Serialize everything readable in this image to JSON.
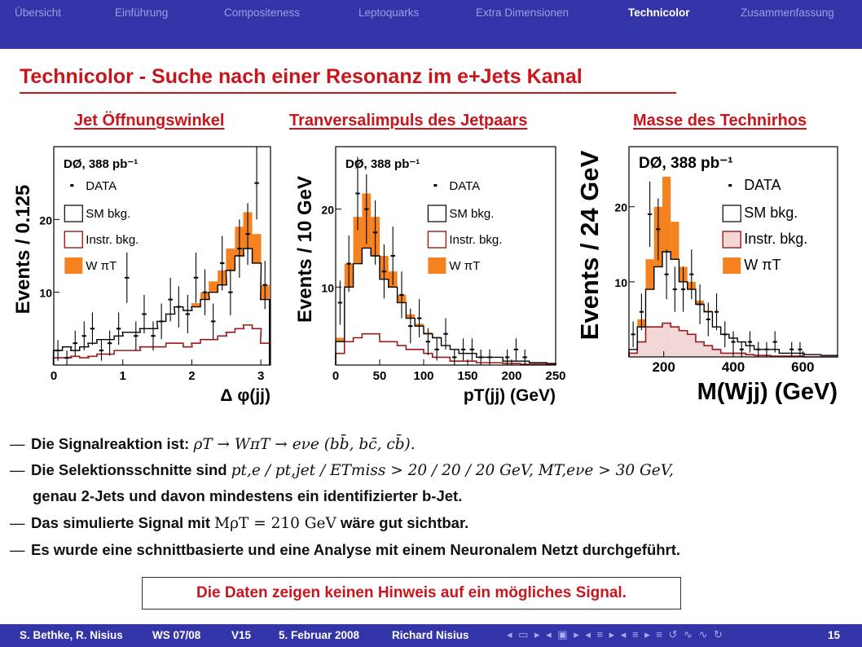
{
  "nav": {
    "items": [
      "Übersicht",
      "Einführung",
      "Compositeness",
      "Leptoquarks",
      "Extra Dimensionen",
      "Technicolor",
      "Zusammenfassung"
    ],
    "active_index": 5
  },
  "slide": {
    "title": "Technicolor - Suche nach einer Resonanz im e+Jets Kanal",
    "plot_titles": [
      "Jet Öffnungswinkel",
      "Tranversalimpuls des Jetpaars",
      "Masse des Technirhos"
    ]
  },
  "chart_data": [
    {
      "type": "bar",
      "experiment_label": "DØ, 388 pb⁻¹",
      "xlabel": "Δ φ(jj)",
      "ylabel": "Events / 0.125",
      "xlim": [
        0,
        3.14
      ],
      "ylim": [
        0,
        30
      ],
      "x_ticks": [
        "0",
        "1",
        "2",
        "3"
      ],
      "y_ticks": [
        "10",
        "20"
      ],
      "legend": [
        "DATA",
        "SM bkg.",
        "Instr. bkg.",
        "W πT"
      ],
      "bin_centers": [
        0.06,
        0.19,
        0.31,
        0.44,
        0.56,
        0.69,
        0.81,
        0.94,
        1.06,
        1.19,
        1.31,
        1.44,
        1.56,
        1.69,
        1.81,
        1.94,
        2.06,
        2.19,
        2.31,
        2.44,
        2.56,
        2.69,
        2.81,
        2.94,
        3.06
      ],
      "series": [
        {
          "name": "SM bkg.",
          "values": [
            2,
            2.5,
            2,
            2.5,
            3,
            3.5,
            3.5,
            4,
            4.5,
            4.5,
            5,
            5,
            6,
            7,
            8,
            7.5,
            8,
            9,
            10,
            11,
            13,
            15,
            16,
            14,
            9
          ]
        },
        {
          "name": "Instr. bkg.",
          "values": [
            1,
            1,
            1.2,
            1,
            1.2,
            1.5,
            1.5,
            2,
            2,
            2,
            2.5,
            2.5,
            2.5,
            3,
            3,
            2.5,
            3,
            3.5,
            3.5,
            4,
            4.5,
            5,
            5.5,
            5,
            3
          ]
        },
        {
          "name": "W πT",
          "values": [
            0,
            0,
            0,
            0,
            0,
            0,
            0,
            0,
            0,
            0,
            0,
            0,
            0,
            0,
            0,
            0,
            0.5,
            1,
            1.5,
            2,
            3,
            4,
            5,
            4,
            2
          ]
        },
        {
          "name": "DATA",
          "values": [
            2,
            1,
            3,
            4,
            5,
            2,
            3,
            5,
            12,
            4,
            7,
            4,
            6,
            9,
            8,
            7,
            12,
            10,
            6,
            14,
            10,
            16,
            18,
            25,
            11
          ]
        }
      ]
    },
    {
      "type": "bar",
      "experiment_label": "DØ, 388 pb⁻¹",
      "xlabel": "pT(jj) (GeV)",
      "ylabel": "Events / 10 GeV",
      "xlim": [
        0,
        250
      ],
      "ylim": [
        0,
        28
      ],
      "x_ticks": [
        "0",
        "50",
        "100",
        "150",
        "200",
        "250"
      ],
      "y_ticks": [
        "10",
        "20"
      ],
      "legend": [
        "DATA",
        "SM bkg.",
        "Instr. bkg.",
        "W πT"
      ],
      "bin_centers": [
        5,
        15,
        25,
        35,
        45,
        55,
        65,
        75,
        85,
        95,
        105,
        115,
        125,
        135,
        145,
        155,
        165,
        175,
        185,
        195,
        205,
        215,
        225,
        235,
        245
      ],
      "series": [
        {
          "name": "SM bkg.",
          "values": [
            3,
            10,
            13,
            15,
            14,
            11,
            10,
            8,
            6,
            5,
            4,
            3.5,
            2.5,
            2,
            1.5,
            1.5,
            1,
            1,
            1,
            0.5,
            0.5,
            0.5,
            0.3,
            0.3,
            0.2
          ]
        },
        {
          "name": "Instr. bkg.",
          "values": [
            1.5,
            3,
            3.5,
            4,
            4,
            3,
            3,
            2.5,
            2,
            2,
            1.5,
            1,
            1,
            0.5,
            0.5,
            0.5,
            0.3,
            0.3,
            0.3,
            0.2,
            0.2,
            0.1,
            0.1,
            0.1,
            0.1
          ]
        },
        {
          "name": "W πT",
          "values": [
            0.5,
            3,
            6,
            7,
            5,
            3,
            2,
            1,
            0.5,
            0.3,
            0.2,
            0.1,
            0,
            0,
            0,
            0,
            0,
            0,
            0,
            0,
            0,
            0,
            0,
            0,
            0
          ]
        },
        {
          "name": "DATA",
          "values": [
            8,
            13,
            22,
            20,
            17,
            12,
            14,
            9,
            5,
            6,
            3,
            2,
            4,
            1,
            2,
            2,
            1,
            1,
            0,
            1,
            2,
            1,
            0,
            0,
            0
          ]
        }
      ]
    },
    {
      "type": "bar",
      "experiment_label": "DØ, 388 pb⁻¹",
      "xlabel": "M(Wjj) (GeV)",
      "ylabel": "Events / 24 GeV",
      "xlim": [
        100,
        700
      ],
      "ylim": [
        0,
        28
      ],
      "x_ticks": [
        "200",
        "400",
        "600"
      ],
      "y_ticks": [
        "10",
        "20"
      ],
      "legend": [
        "DATA",
        "SM bkg.",
        "Instr. bkg.",
        "W πT"
      ],
      "bin_centers": [
        112,
        136,
        160,
        184,
        208,
        232,
        256,
        280,
        304,
        328,
        352,
        376,
        400,
        424,
        448,
        472,
        496,
        520,
        544,
        568,
        592,
        616,
        640,
        664,
        688
      ],
      "series": [
        {
          "name": "SM bkg.",
          "values": [
            1,
            4,
            9,
            12,
            14,
            13,
            10,
            9,
            7,
            6,
            4,
            3,
            2.5,
            2,
            1.5,
            1,
            1,
            1,
            0.5,
            0.5,
            0.5,
            0.3,
            0.3,
            0.2,
            0.2
          ]
        },
        {
          "name": "Instr. bkg.",
          "values": [
            0.5,
            2,
            4,
            4,
            4.5,
            4,
            3.5,
            3,
            2,
            1.5,
            1,
            0.5,
            0.5,
            0.5,
            0.3,
            0.2,
            0.2,
            0.1,
            0.1,
            0.1,
            0.1,
            0,
            0,
            0,
            0
          ]
        },
        {
          "name": "W πT",
          "values": [
            0,
            1,
            4,
            8,
            10,
            5,
            2,
            1,
            0.5,
            0.2,
            0,
            0,
            0,
            0,
            0,
            0,
            0,
            0,
            0,
            0,
            0,
            0,
            0,
            0,
            0
          ]
        },
        {
          "name": "DATA",
          "values": [
            3,
            6,
            19,
            17,
            11,
            9,
            9,
            11,
            7,
            5,
            6,
            3,
            2,
            1,
            2,
            1,
            1,
            2,
            0,
            1,
            1,
            0,
            0,
            0,
            0
          ]
        }
      ]
    }
  ],
  "bullets": {
    "b1": {
      "text": "Die Signalreaktion ist: ",
      "math": "ρT → WπT → eνe (bb̄, bc̄, cb̄)."
    },
    "b2": {
      "text": "Die Selektionsschnitte sind ",
      "math": "pt,e / pt,jet / ETmiss > 20 / 20 / 20 GeV, MT,eνe > 30 GeV,"
    },
    "b2cont": "genau 2-Jets und davon mindestens ein identifizierter b-Jet.",
    "b3": {
      "text": "Das simulierte Signal mit ",
      "math": "MρT = 210 GeV",
      "tail": " wäre gut sichtbar."
    },
    "b4": "Es wurde eine schnittbasierte und eine Analyse mit einem Neuronalem Netzt durchgeführt."
  },
  "conclusion": "Die Daten zeigen keinen Hinweis auf ein mögliches Signal.",
  "footer": {
    "authors": "S. Bethke, R. Nisius",
    "semester": "WS 07/08",
    "version": "V15",
    "date": "5. Februar 2008",
    "speaker": "Richard Nisius",
    "nav_symbols": "◂ ▭ ▸ ◂ ▣ ▸ ◂ ≡ ▸ ◂ ≡ ▸  ≡  ↺ ∿ ∿ ↻",
    "page": "15"
  },
  "colors": {
    "nav_bg": "#3334a8",
    "title_red": "#c8161d",
    "signal_orange": "#f5821f",
    "instr_red": "#9b1a1a"
  }
}
